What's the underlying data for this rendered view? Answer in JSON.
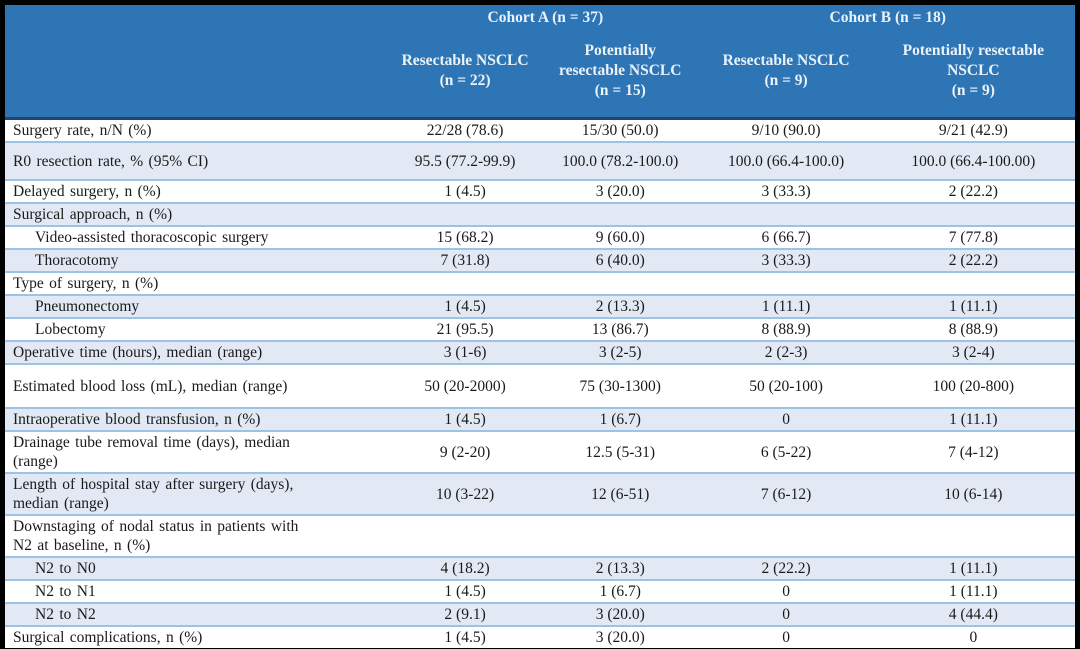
{
  "table": {
    "cohort_labels": [
      "Cohort A (n = 37)",
      "Cohort B (n = 18)"
    ],
    "column_headers": [
      "Resectable NSCLC\n(n = 22)",
      "Potentially\nresectable NSCLC\n(n = 15)",
      "Resectable NSCLC\n(n = 9)",
      "Potentially resectable\nNSCLC\n(n = 9)"
    ],
    "rows": [
      {
        "label": "Surgery rate, n/N (%)",
        "indent": false,
        "values": [
          "22/28 (78.6)",
          "15/30 (50.0)",
          "9/10 (90.0)",
          "9/21 (42.9)"
        ]
      },
      {
        "label": "R0 resection rate, % (95% CI)",
        "indent": false,
        "values": [
          "95.5 (77.2-99.9)",
          "100.0 (78.2-100.0)",
          "100.0 (66.4-100.0)",
          "100.0 (66.4-100.00)"
        ]
      },
      {
        "label": "Delayed surgery, n (%)",
        "indent": false,
        "values": [
          "1 (4.5)",
          "3 (20.0)",
          "3 (33.3)",
          "2 (22.2)"
        ]
      },
      {
        "label": "Surgical approach, n (%)",
        "indent": false,
        "values": [
          "",
          "",
          "",
          ""
        ]
      },
      {
        "label": "Video-assisted thoracoscopic surgery",
        "indent": true,
        "values": [
          "15 (68.2)",
          "9 (60.0)",
          "6 (66.7)",
          "7 (77.8)"
        ]
      },
      {
        "label": "Thoracotomy",
        "indent": true,
        "values": [
          "7 (31.8)",
          "6 (40.0)",
          "3 (33.3)",
          "2 (22.2)"
        ]
      },
      {
        "label": "Type of surgery, n (%)",
        "indent": false,
        "values": [
          "",
          "",
          "",
          ""
        ]
      },
      {
        "label": "Pneumonectomy",
        "indent": true,
        "values": [
          "1 (4.5)",
          "2 (13.3)",
          "1 (11.1)",
          "1 (11.1)"
        ]
      },
      {
        "label": "Lobectomy",
        "indent": true,
        "values": [
          "21 (95.5)",
          "13 (86.7)",
          "8 (88.9)",
          "8 (88.9)"
        ]
      },
      {
        "label": "Operative time (hours), median (range)",
        "indent": false,
        "values": [
          "3 (1-6)",
          "3 (2-5)",
          "2 (2-3)",
          "3 (2-4)"
        ]
      },
      {
        "label": "Estimated blood loss (mL), median (range)",
        "indent": false,
        "values": [
          "50 (20-2000)",
          "75 (30-1300)",
          "50 (20-100)",
          "100 (20-800)"
        ]
      },
      {
        "label": "Intraoperative blood transfusion, n (%)",
        "indent": false,
        "values": [
          "1 (4.5)",
          "1 (6.7)",
          "0",
          "1 (11.1)"
        ]
      },
      {
        "label": "Drainage tube removal time (days), median\n(range)",
        "indent": false,
        "values": [
          "9 (2-20)",
          "12.5 (5-31)",
          "6 (5-22)",
          "7 (4-12)"
        ]
      },
      {
        "label": "Length of hospital stay after surgery (days),\nmedian (range)",
        "indent": false,
        "values": [
          "10 (3-22)",
          "12 (6-51)",
          "7 (6-12)",
          "10 (6-14)"
        ]
      },
      {
        "label": "Downstaging of nodal status in patients with\nN2 at baseline, n (%)",
        "indent": false,
        "values": [
          "",
          "",
          "",
          ""
        ]
      },
      {
        "label": "N2 to N0",
        "indent": true,
        "values": [
          "4 (18.2)",
          "2 (13.3)",
          "2 (22.2)",
          "1 (11.1)"
        ]
      },
      {
        "label": "N2 to N1",
        "indent": true,
        "values": [
          "1 (4.5)",
          "1 (6.7)",
          "0",
          "1 (11.1)"
        ]
      },
      {
        "label": "N2 to N2",
        "indent": true,
        "values": [
          "2 (9.1)",
          "3 (20.0)",
          "0",
          "4 (44.4)"
        ]
      },
      {
        "label": "Surgical complications, n (%)",
        "indent": false,
        "values": [
          "1 (4.5)",
          "3 (20.0)",
          "0",
          "0"
        ]
      }
    ]
  },
  "colors": {
    "header_background": "#2E75B6",
    "header_text": "#EAF2FA",
    "shaded_row_background": "#E2E9F4",
    "row_border": "#9CC2E5",
    "header_bottom_border": "#1F4472",
    "outer_frame": "#000000",
    "body_text": "#1A1A1A"
  }
}
